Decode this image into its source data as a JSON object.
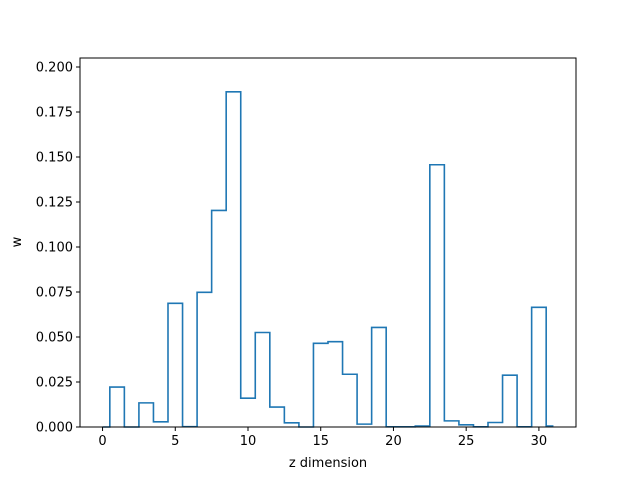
{
  "chart_data": {
    "type": "step",
    "title": "",
    "xlabel": "z dimension",
    "ylabel": "w",
    "x": [
      0,
      1,
      2,
      3,
      4,
      5,
      6,
      7,
      8,
      9,
      10,
      11,
      12,
      13,
      14,
      15,
      16,
      17,
      18,
      19,
      20,
      21,
      22,
      23,
      24,
      25,
      26,
      27,
      28,
      29,
      30,
      31
    ],
    "values": [
      0.0,
      0.0222,
      0.0,
      0.0134,
      0.0029,
      0.0687,
      0.0002,
      0.0748,
      0.1203,
      0.1862,
      0.016,
      0.0525,
      0.0111,
      0.0023,
      0.0,
      0.0465,
      0.0474,
      0.0293,
      0.0016,
      0.0553,
      0.0001,
      0.0001,
      0.0005,
      0.1457,
      0.0034,
      0.0012,
      0.0001,
      0.0025,
      0.0288,
      0.0001,
      0.0665,
      0.0005
    ],
    "xlim": [
      -1.55,
      32.55
    ],
    "ylim": [
      0,
      0.205
    ],
    "xticks": [
      0,
      5,
      10,
      15,
      20,
      25,
      30
    ],
    "xtick_labels": [
      "0",
      "5",
      "10",
      "15",
      "20",
      "25",
      "30"
    ],
    "yticks": [
      0.0,
      0.025,
      0.05,
      0.075,
      0.1,
      0.125,
      0.15,
      0.175,
      0.2
    ],
    "ytick_labels": [
      "0.000",
      "0.025",
      "0.050",
      "0.075",
      "0.100",
      "0.125",
      "0.150",
      "0.175",
      "0.200"
    ],
    "color": "#1f77b4",
    "grid": false
  }
}
